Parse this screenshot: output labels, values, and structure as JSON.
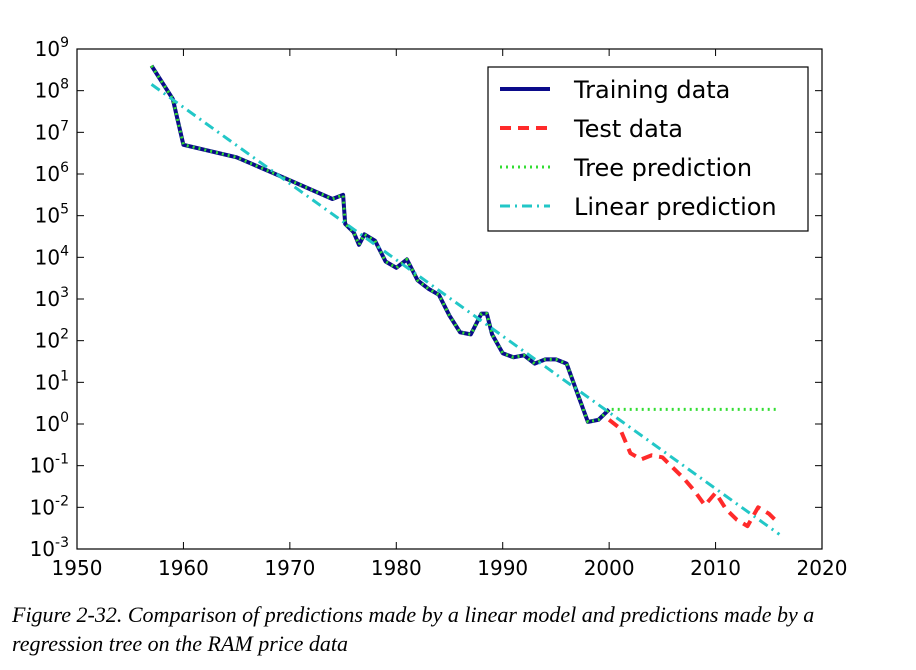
{
  "chart_data": {
    "type": "line",
    "title": "",
    "xlabel": "",
    "ylabel": "",
    "xlim": [
      1950,
      2020
    ],
    "ylim_log10": [
      -3,
      9
    ],
    "yscale": "log",
    "grid": false,
    "legend_position": "upper right",
    "x_tick_labels": [
      "1950",
      "1960",
      "1970",
      "1980",
      "1990",
      "2000",
      "2010",
      "2020"
    ],
    "y_tick_labels": [
      {
        "base": "10",
        "exp": "-3"
      },
      {
        "base": "10",
        "exp": "-2"
      },
      {
        "base": "10",
        "exp": "-1"
      },
      {
        "base": "10",
        "exp": "0"
      },
      {
        "base": "10",
        "exp": "1"
      },
      {
        "base": "10",
        "exp": "2"
      },
      {
        "base": "10",
        "exp": "3"
      },
      {
        "base": "10",
        "exp": "4"
      },
      {
        "base": "10",
        "exp": "5"
      },
      {
        "base": "10",
        "exp": "6"
      },
      {
        "base": "10",
        "exp": "7"
      },
      {
        "base": "10",
        "exp": "8"
      },
      {
        "base": "10",
        "exp": "9"
      }
    ],
    "series": [
      {
        "name": "Training data",
        "color": "#0b0b8a",
        "style": "solid",
        "x": [
          1957,
          1959,
          1960,
          1965,
          1970,
          1974,
          1975,
          1975.2,
          1976,
          1976.5,
          1977,
          1978,
          1979,
          1980,
          1981,
          1982,
          1983,
          1984,
          1985,
          1986,
          1987,
          1988,
          1988.5,
          1989,
          1990,
          1991,
          1992,
          1993,
          1994,
          1995,
          1996,
          1997,
          1998,
          1999,
          2000
        ],
        "log10_y": [
          8.6,
          7.8,
          6.7,
          6.4,
          5.85,
          5.4,
          5.5,
          4.8,
          4.6,
          4.3,
          4.55,
          4.4,
          3.9,
          3.75,
          3.95,
          3.45,
          3.25,
          3.1,
          2.6,
          2.2,
          2.15,
          2.65,
          2.65,
          2.15,
          1.7,
          1.6,
          1.65,
          1.45,
          1.55,
          1.55,
          1.45,
          0.75,
          0.05,
          0.1,
          0.35
        ]
      },
      {
        "name": "Test data",
        "color": "#ff2a2a",
        "style": "dashed",
        "x": [
          2000,
          2001,
          2002,
          2003,
          2004,
          2005,
          2006,
          2007,
          2008,
          2009,
          2010,
          2011,
          2012,
          2013,
          2014,
          2015,
          2016
        ],
        "log10_y": [
          0.1,
          -0.1,
          -0.7,
          -0.85,
          -0.75,
          -0.8,
          -1.05,
          -1.3,
          -1.6,
          -1.95,
          -1.65,
          -2.05,
          -2.3,
          -2.45,
          -2.0,
          -2.15,
          -2.4
        ]
      },
      {
        "name": "Tree prediction",
        "color": "#33dd33",
        "style": "dotted",
        "x": [
          1957,
          1959,
          1960,
          1965,
          1970,
          1974,
          1975,
          1975.2,
          1976,
          1976.5,
          1977,
          1978,
          1979,
          1980,
          1981,
          1982,
          1983,
          1984,
          1985,
          1986,
          1987,
          1988,
          1988.5,
          1989,
          1990,
          1991,
          1992,
          1993,
          1994,
          1995,
          1996,
          1997,
          1998,
          1999,
          2000,
          2016
        ],
        "log10_y": [
          8.6,
          7.8,
          6.7,
          6.4,
          5.85,
          5.4,
          5.5,
          4.8,
          4.6,
          4.3,
          4.55,
          4.4,
          3.9,
          3.75,
          3.95,
          3.45,
          3.25,
          3.1,
          2.6,
          2.2,
          2.15,
          2.65,
          2.65,
          2.15,
          1.7,
          1.6,
          1.65,
          1.45,
          1.55,
          1.55,
          1.45,
          0.75,
          0.05,
          0.1,
          0.35,
          0.35
        ]
      },
      {
        "name": "Linear prediction",
        "color": "#22c7c7",
        "style": "dashdot",
        "x": [
          1957,
          2016
        ],
        "log10_y": [
          8.15,
          -2.65
        ]
      }
    ]
  },
  "caption": "Figure 2-32. Comparison of predictions made by a linear model and predictions made by a regression tree on the RAM price data"
}
